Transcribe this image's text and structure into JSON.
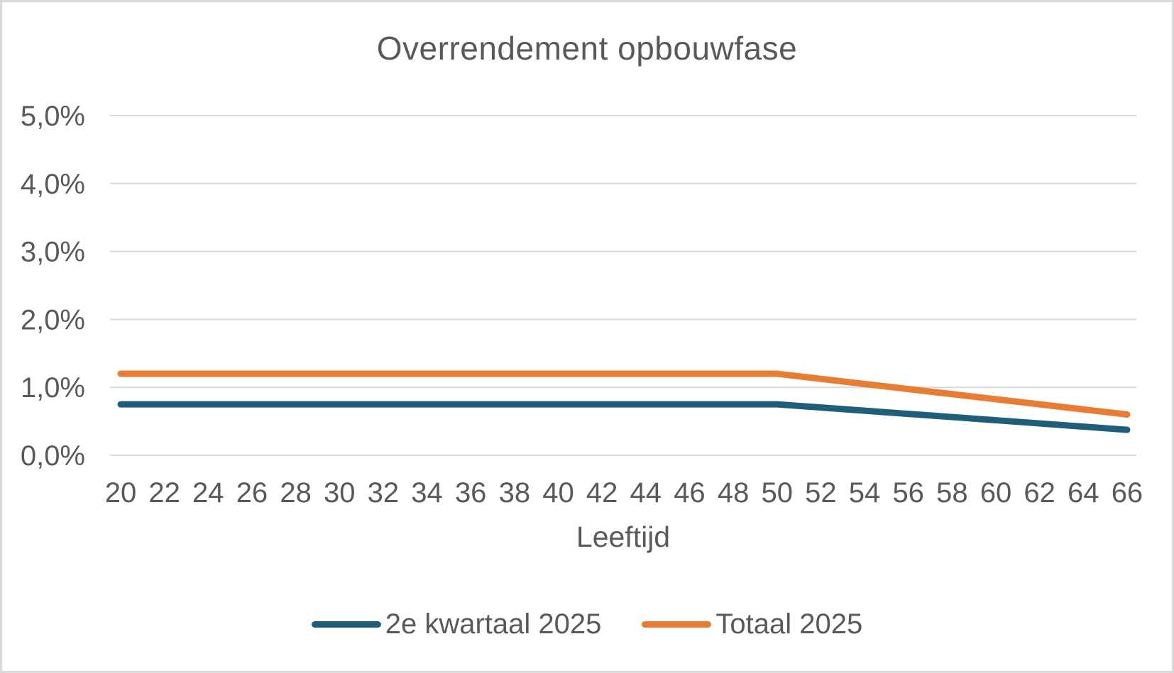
{
  "title": "Overrendement opbouwfase",
  "colors": {
    "title_text": "#595959",
    "axis_text": "#595959",
    "gridline": "#d9d9d9",
    "background": "#ffffff",
    "series_blue": "#1e5e7a",
    "series_orange": "#e87c33"
  },
  "chart_data": {
    "type": "line",
    "title": "Overrendement opbouwfase",
    "xlabel": "Leeftijd",
    "ylabel": "",
    "categories": [
      20,
      22,
      24,
      26,
      28,
      30,
      32,
      34,
      36,
      38,
      40,
      42,
      44,
      46,
      48,
      50,
      52,
      54,
      56,
      58,
      60,
      62,
      64,
      66
    ],
    "series": [
      {
        "name": "2e kwartaal 2025",
        "color": "#1e5e7a",
        "values": [
          0.75,
          0.75,
          0.75,
          0.75,
          0.75,
          0.75,
          0.75,
          0.75,
          0.75,
          0.75,
          0.75,
          0.75,
          0.75,
          0.75,
          0.75,
          0.75,
          0.703,
          0.656,
          0.609,
          0.563,
          0.516,
          0.469,
          0.422,
          0.375
        ]
      },
      {
        "name": "Totaal 2025",
        "color": "#e87c33",
        "values": [
          1.2,
          1.2,
          1.2,
          1.2,
          1.2,
          1.2,
          1.2,
          1.2,
          1.2,
          1.2,
          1.2,
          1.2,
          1.2,
          1.2,
          1.2,
          1.2,
          1.125,
          1.05,
          0.975,
          0.9,
          0.825,
          0.75,
          0.675,
          0.6
        ]
      }
    ],
    "ylim": [
      0,
      5
    ],
    "yticks": [
      0,
      1,
      2,
      3,
      4,
      5
    ],
    "ytick_labels": [
      "0,0%",
      "1,0%",
      "2,0%",
      "3,0%",
      "4,0%",
      "5,0%"
    ],
    "grid": true,
    "legend_position": "bottom"
  }
}
